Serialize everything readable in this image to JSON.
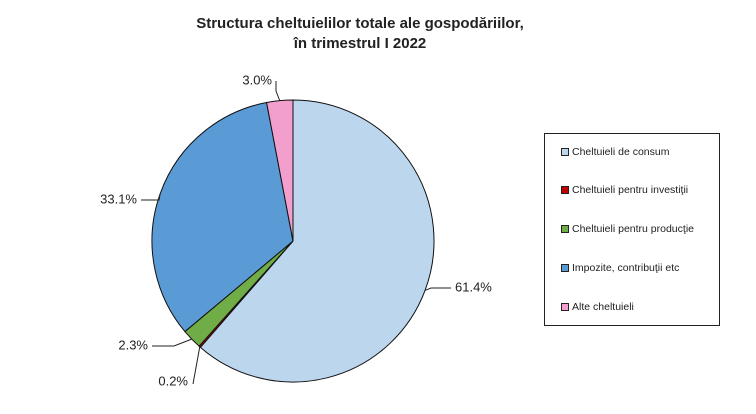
{
  "chart_data": {
    "type": "pie",
    "title_line1": "Structura cheltuielilor totale ale gospodăriilor,",
    "title_line2": "în trimestrul I 2022",
    "slices": [
      {
        "name": "Cheltuieli de consum",
        "value": 61.4,
        "label": "61.4%",
        "color": "#bcd6ee"
      },
      {
        "name": "Cheltuieli pentru investiţii",
        "value": 0.2,
        "label": "0.2%",
        "color": "#c00000"
      },
      {
        "name": "Cheltuieli pentru producţie",
        "value": 2.3,
        "label": "2.3%",
        "color": "#70ad47"
      },
      {
        "name": "Impozite, contribuţii etc",
        "value": 33.1,
        "label": "33.1%",
        "color": "#5b9bd5"
      },
      {
        "name": "Alte cheltuieli",
        "value": 3.0,
        "label": "3.0%",
        "color": "#f39fce"
      }
    ],
    "start": "12 o'clock",
    "direction": "clockwise",
    "legend_position": "right"
  }
}
